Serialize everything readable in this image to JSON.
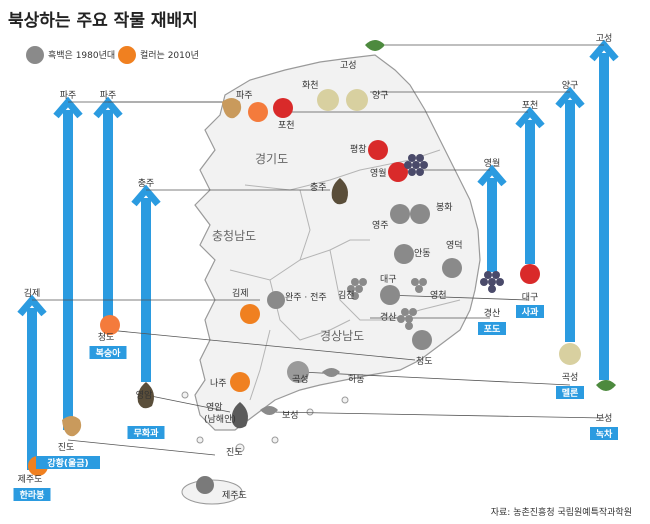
{
  "title": "북상하는 주요 작물 재배지",
  "legend": {
    "old_label": "흑백은 1980년대",
    "new_label": "컬러는 2010년"
  },
  "source": "자료: 농촌진흥청 국립원예특작과학원",
  "regions": [
    "경기도",
    "충청남도",
    "경상남도"
  ],
  "colors": {
    "arrow": "#2b9be0",
    "badge": "#2b9be0",
    "map_fill": "#f2f2f2",
    "map_stroke": "#9a9a9a"
  },
  "crops": [
    {
      "id": "hallabong",
      "name": "한라봉",
      "from": "제주도",
      "to": "김제",
      "icon": "orange-icon"
    },
    {
      "id": "ginseng",
      "name": "강황(울금)",
      "from": "진도",
      "to": "파주",
      "icon": "ginseng-root-icon"
    },
    {
      "id": "peach",
      "name": "복숭아",
      "from": "청도",
      "to": "파주",
      "icon": "peach-icon"
    },
    {
      "id": "fig",
      "name": "무화과",
      "from": "영암",
      "to": "충주",
      "icon": "fig-icon"
    },
    {
      "id": "grape",
      "name": "포도",
      "from": "경산",
      "to": "영월",
      "icon": "grape-icon"
    },
    {
      "id": "apple",
      "name": "사과",
      "from": "대구",
      "to": "포천",
      "icon": "apple-icon"
    },
    {
      "id": "melon",
      "name": "멜론",
      "from": "곡성",
      "to": "양구",
      "icon": "melon-icon"
    },
    {
      "id": "tea",
      "name": "녹차",
      "from": "보성",
      "to": "고성",
      "icon": "tea-leaf-icon"
    }
  ],
  "places": {
    "paju": "파주",
    "pocheon": "포천",
    "hwacheon": "화천",
    "yanggu": "양구",
    "goseong": "고성",
    "pyeongchang": "평창",
    "yeongwol": "영월",
    "chungju": "충주",
    "yeongju": "영주",
    "bonghwa": "봉화",
    "andong": "안동",
    "yeongdeok": "영덕",
    "daegu": "대구",
    "gimcheon": "김천",
    "yeongcheon": "영천",
    "gyeongsan": "경산",
    "cheongdo": "청도",
    "gimje": "김제",
    "wanju": "완주 · 전주",
    "naju": "나주",
    "gokseong": "곡성",
    "hadong": "하동",
    "yeongam": "영암",
    "haenam": "(남해안)",
    "boseong": "보성",
    "jindo": "진도",
    "jeju": "제주도"
  }
}
